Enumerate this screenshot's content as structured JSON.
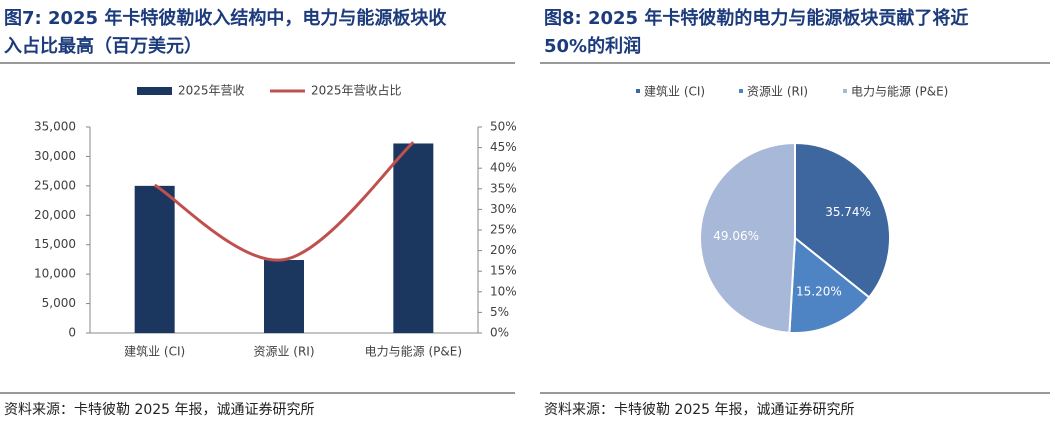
{
  "chart_data": [
    {
      "type": "bar",
      "title_lines": [
        "图7:  2025 年卡特彼勒收入结构中，电力与能源板块收",
        "入占比最高（百万美元）"
      ],
      "categories": [
        "建筑业 (CI)",
        "资源业 (RI)",
        "电力与能源 (P&E)"
      ],
      "series": [
        {
          "name": "2025年营收",
          "type": "bar",
          "color": "#1b365f",
          "values": [
            25000,
            12400,
            32200
          ]
        },
        {
          "name": "2025年营收占比",
          "type": "line",
          "axis": "y2",
          "color": "#c0504d",
          "values": [
            35.9,
            17.8,
            46.3
          ]
        }
      ],
      "ylim": [
        0,
        35000
      ],
      "yticks": [
        0,
        {
          "value": 5000,
          "label": "5,000"
        },
        {
          "value": 10000,
          "label": "10,000"
        },
        {
          "value": 15000,
          "label": "15,000"
        },
        {
          "value": 20000,
          "label": "20,000"
        },
        {
          "value": 25000,
          "label": "25,000"
        },
        {
          "value": 30000,
          "label": "30,000"
        },
        {
          "value": 35000,
          "label": "35,000"
        }
      ],
      "y2lim": [
        0,
        50
      ],
      "y2ticks": [
        {
          "value": 0,
          "label": "0%"
        },
        {
          "value": 5,
          "label": "5%"
        },
        {
          "value": 10,
          "label": "10%"
        },
        {
          "value": 15,
          "label": "15%"
        },
        {
          "value": 20,
          "label": "20%"
        },
        {
          "value": 25,
          "label": "25%"
        },
        {
          "value": 30,
          "label": "30%"
        },
        {
          "value": 35,
          "label": "35%"
        },
        {
          "value": 40,
          "label": "40%"
        },
        {
          "value": 45,
          "label": "45%"
        },
        {
          "value": 50,
          "label": "50%"
        }
      ],
      "legend": "top",
      "source": "资料来源：卡特彼勒 2025 年报，诚通证券研究所"
    },
    {
      "type": "pie",
      "title_lines": [
        "图8:  2025 年卡特彼勒的电力与能源板块贡献了将近",
        "50%的利润"
      ],
      "categories": [
        "建筑业 (CI)",
        "资源业 (RI)",
        "电力与能源 (P&E)"
      ],
      "values": [
        35.74,
        15.2,
        49.06
      ],
      "value_labels": [
        "35.74%",
        "15.20%",
        "49.06%"
      ],
      "colors": [
        "#3f679f",
        "#4f84c4",
        "#a8b8d8"
      ],
      "legend": "top",
      "source": "资料来源：卡特彼勒 2025 年报，诚通证券研究所"
    }
  ]
}
